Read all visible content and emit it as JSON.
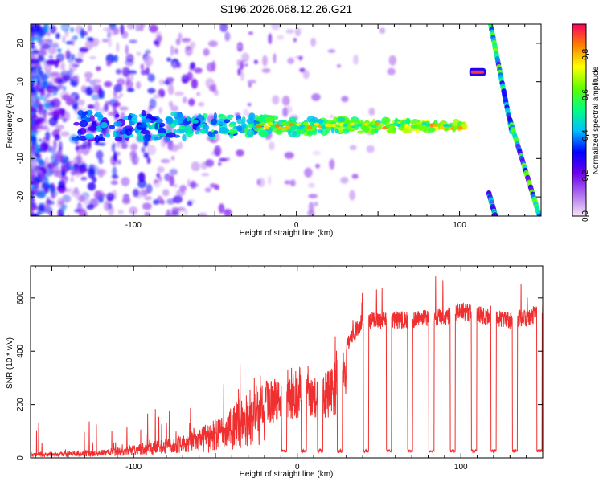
{
  "chart_data": [
    {
      "type": "heatmap",
      "title": "S196.2026.068.12.26.G21",
      "xlabel": "Height of straight line (km)",
      "ylabel": "Frequency (Hz)",
      "xlim": [
        -163,
        150
      ],
      "ylim": [
        -25,
        25
      ],
      "xticks": [
        -100,
        0,
        100
      ],
      "yticks": [
        -20,
        -10,
        0,
        10,
        20
      ],
      "colorbar": {
        "label": "Normalized spectral amplitude",
        "range": [
          0.0,
          0.95
        ],
        "ticks": [
          0.0,
          0.2,
          0.4,
          0.6,
          0.8
        ],
        "colors": [
          "#f4e6f8",
          "#b070f0",
          "#7000f0",
          "#0000ff",
          "#00bfff",
          "#00ff80",
          "#60ff00",
          "#ffff00",
          "#ff8000",
          "#ff0060"
        ]
      },
      "features": [
        {
          "name": "main-track",
          "x_range": [
            -163,
            103
          ],
          "frequency_hz": -1.5,
          "peak_amplitude": 0.9
        },
        {
          "name": "short-segment",
          "x_range": [
            106,
            116
          ],
          "frequency_hz": 12.5,
          "peak_amplitude": 0.95
        },
        {
          "name": "steep-streak-upper",
          "x_range": [
            119,
            132
          ],
          "frequency_from_hz": 25,
          "frequency_to_hz": -3,
          "peak_amplitude": 0.5
        },
        {
          "name": "steep-streak-lower",
          "x_range": [
            131,
            149
          ],
          "frequency_from_hz": 0,
          "frequency_to_hz": -25,
          "peak_amplitude": 0.5
        },
        {
          "name": "right-edge-streak",
          "x_range": [
            118,
            122
          ],
          "frequency_from_hz": -19,
          "frequency_to_hz": -25,
          "peak_amplitude": 0.4
        }
      ]
    },
    {
      "type": "line",
      "title": "",
      "xlabel": "Height of straight line (km)",
      "ylabel": "SNR (10 * v/v)",
      "xlim": [
        -163,
        150
      ],
      "ylim": [
        0,
        720
      ],
      "xticks": [
        -100,
        0,
        100
      ],
      "yticks": [
        0,
        200,
        400,
        600
      ],
      "line_color": "#f03030",
      "series": [
        {
          "name": "SNR",
          "x": [
            -163,
            -140,
            -120,
            -100,
            -80,
            -60,
            -50,
            -40,
            -30,
            -20,
            -10,
            0,
            5,
            10,
            15,
            20,
            25,
            30,
            40,
            50,
            60,
            70,
            80,
            90,
            100,
            110,
            120,
            130,
            140,
            150
          ],
          "y": [
            20,
            25,
            30,
            50,
            70,
            110,
            150,
            200,
            260,
            290,
            300,
            330,
            370,
            300,
            320,
            330,
            380,
            450,
            550,
            550,
            550,
            550,
            560,
            560,
            590,
            570,
            560,
            550,
            560,
            580
          ]
        }
      ],
      "dropouts_x": [
        -8,
        4,
        14,
        26,
        42,
        56,
        69,
        82,
        95,
        108,
        120,
        133,
        148
      ],
      "dropout_level": 20
    }
  ]
}
